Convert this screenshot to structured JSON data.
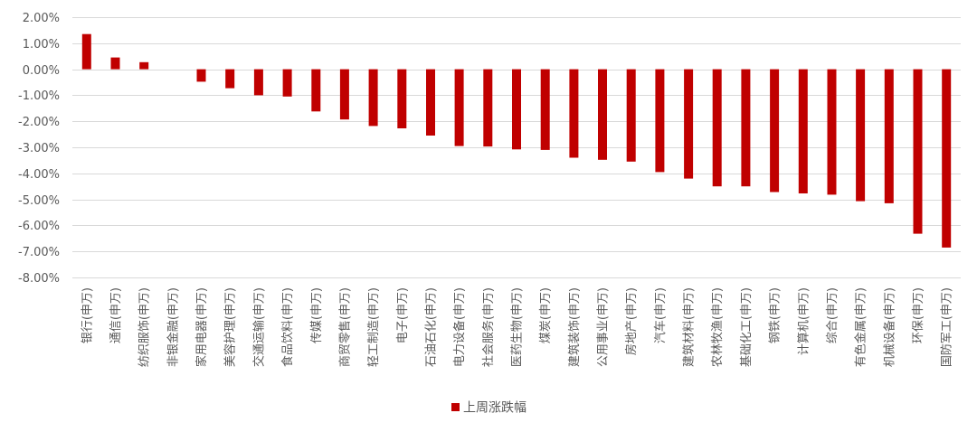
{
  "chart_data": {
    "type": "bar",
    "title": "",
    "xlabel": "",
    "ylabel": "",
    "ylim": [
      -8,
      2
    ],
    "y_ticks": [
      "2.00%",
      "1.00%",
      "0.00%",
      "-1.00%",
      "-2.00%",
      "-3.00%",
      "-4.00%",
      "-5.00%",
      "-6.00%",
      "-7.00%",
      "-8.00%"
    ],
    "y_tick_values": [
      2,
      1,
      0,
      -1,
      -2,
      -3,
      -4,
      -5,
      -6,
      -7,
      -8
    ],
    "grid": true,
    "legend_position": "bottom",
    "categories": [
      "银行(申万)",
      "通信(申万)",
      "纺织服饰(申万)",
      "非银金融(申万)",
      "家用电器(申万)",
      "美容护理(申万)",
      "交通运输(申万)",
      "食品饮料(申万)",
      "传媒(申万)",
      "商贸零售(申万)",
      "轻工制造(申万)",
      "电子(申万)",
      "石油石化(申万)",
      "电力设备(申万)",
      "社会服务(申万)",
      "医药生物(申万)",
      "煤炭(申万)",
      "建筑装饰(申万)",
      "公用事业(申万)",
      "房地产(申万)",
      "汽车(申万)",
      "建筑材料(申万)",
      "农林牧渔(申万)",
      "基础化工(申万)",
      "钢铁(申万)",
      "计算机(申万)",
      "综合(申万)",
      "有色金属(申万)",
      "机械设备(申万)",
      "环保(申万)",
      "国防军工(申万)"
    ],
    "series": [
      {
        "name": "上周涨跌幅",
        "color": "#c00000",
        "values": [
          1.35,
          0.45,
          0.27,
          0.0,
          -0.48,
          -0.73,
          -1.0,
          -1.05,
          -1.62,
          -1.93,
          -2.18,
          -2.27,
          -2.55,
          -2.95,
          -2.97,
          -3.08,
          -3.1,
          -3.4,
          -3.48,
          -3.55,
          -3.95,
          -4.2,
          -4.5,
          -4.5,
          -4.72,
          -4.77,
          -4.82,
          -5.07,
          -5.15,
          -6.32,
          -6.85
        ]
      }
    ]
  }
}
